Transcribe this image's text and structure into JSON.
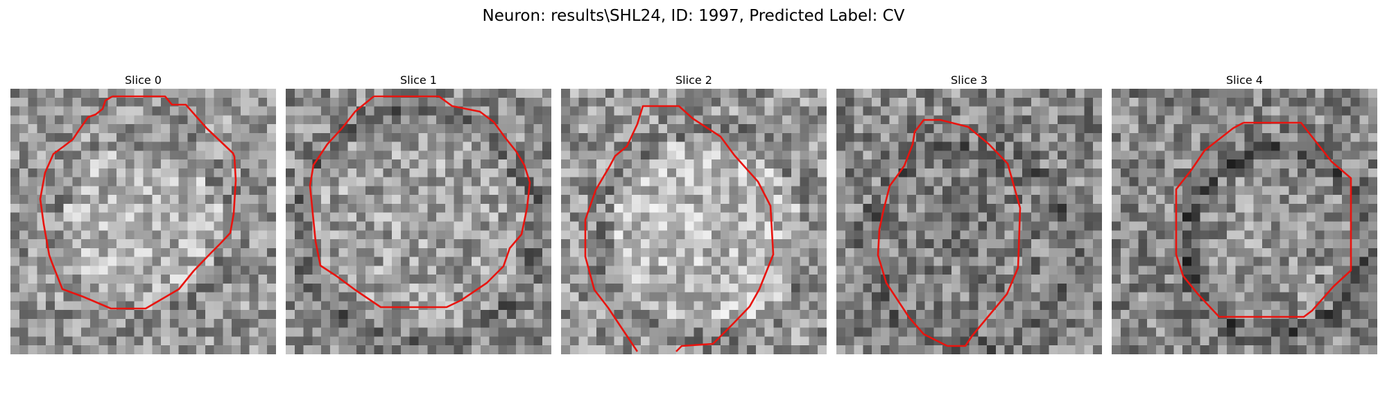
{
  "figure": {
    "title": "Neuron: results\\SHL24, ID: 1997, Predicted Label: CV",
    "contour_color": "#e8140f"
  },
  "panels": [
    {
      "title": "Slice 0"
    },
    {
      "title": "Slice 1"
    },
    {
      "title": "Slice 2"
    },
    {
      "title": "Slice 3"
    },
    {
      "title": "Slice 4"
    }
  ]
}
